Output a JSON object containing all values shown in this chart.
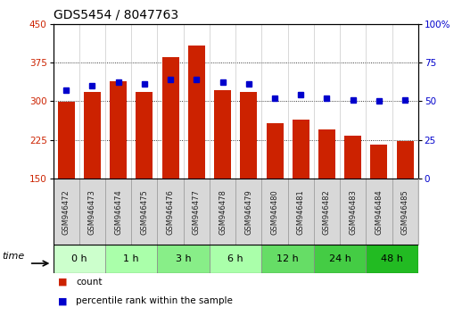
{
  "title": "GDS5454 / 8047763",
  "samples": [
    "GSM946472",
    "GSM946473",
    "GSM946474",
    "GSM946475",
    "GSM946476",
    "GSM946477",
    "GSM946478",
    "GSM946479",
    "GSM946480",
    "GSM946481",
    "GSM946482",
    "GSM946483",
    "GSM946484",
    "GSM946485"
  ],
  "counts": [
    299,
    318,
    338,
    318,
    385,
    408,
    322,
    318,
    257,
    265,
    245,
    233,
    215,
    222
  ],
  "percentile_ranks": [
    57,
    60,
    62,
    61,
    64,
    64,
    62,
    61,
    52,
    54,
    52,
    51,
    50,
    51
  ],
  "time_groups": [
    {
      "label": "0 h",
      "start": 0,
      "end": 2,
      "color": "#ccffcc"
    },
    {
      "label": "1 h",
      "start": 2,
      "end": 4,
      "color": "#aaffaa"
    },
    {
      "label": "3 h",
      "start": 4,
      "end": 6,
      "color": "#88ee88"
    },
    {
      "label": "6 h",
      "start": 6,
      "end": 8,
      "color": "#aaffaa"
    },
    {
      "label": "12 h",
      "start": 8,
      "end": 10,
      "color": "#66dd66"
    },
    {
      "label": "24 h",
      "start": 10,
      "end": 12,
      "color": "#44cc44"
    },
    {
      "label": "48 h",
      "start": 12,
      "end": 14,
      "color": "#22bb22"
    }
  ],
  "ylim_left": [
    150,
    450
  ],
  "ylim_right": [
    0,
    100
  ],
  "yticks_left": [
    150,
    225,
    300,
    375,
    450
  ],
  "yticks_right": [
    0,
    25,
    50,
    75,
    100
  ],
  "bar_color": "#cc2200",
  "dot_color": "#0000cc",
  "background_color": "#ffffff",
  "grid_dotted_at": [
    225,
    300,
    375
  ],
  "xlabel": "time",
  "legend_count": "count",
  "legend_pct": "percentile rank within the sample",
  "title_fontsize": 10,
  "tick_fontsize": 7.5,
  "sample_fontsize": 6,
  "time_fontsize": 8,
  "legend_fontsize": 7.5
}
